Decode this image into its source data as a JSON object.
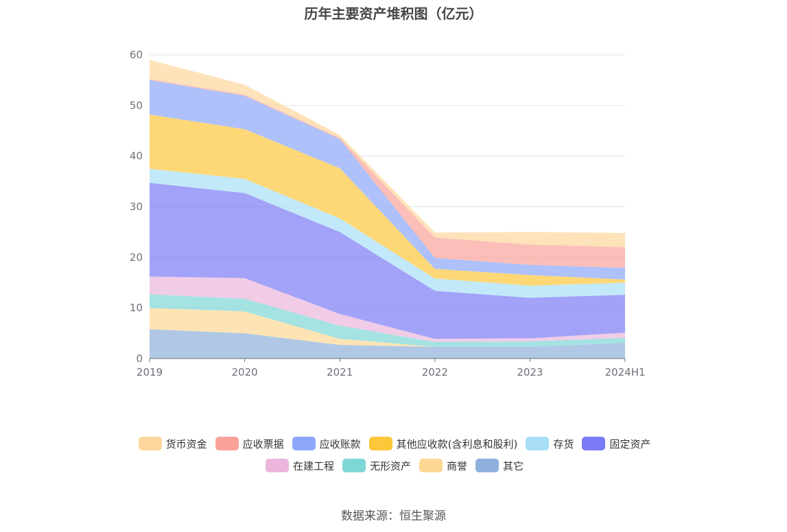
{
  "title": "历年主要资产堆积图（亿元）",
  "source": "数据来源：恒生聚源",
  "chart_data": {
    "type": "area",
    "stacked": true,
    "categories": [
      "2019",
      "2020",
      "2021",
      "2022",
      "2023",
      "2024H1"
    ],
    "ylim": [
      0,
      60
    ],
    "yticks": [
      0,
      10,
      20,
      30,
      40,
      50,
      60
    ],
    "grid": true,
    "legend_position": "bottom",
    "series": [
      {
        "name": "其它",
        "color": "#8fb0dc",
        "values": [
          5.8,
          5.0,
          2.7,
          2.3,
          2.3,
          3.1
        ]
      },
      {
        "name": "商誉",
        "color": "#fdd894",
        "values": [
          4.2,
          4.3,
          1.2,
          0.0,
          0.0,
          0.0
        ]
      },
      {
        "name": "无形资产",
        "color": "#7fd6d6",
        "values": [
          2.7,
          2.5,
          2.6,
          1.0,
          1.1,
          1.0
        ]
      },
      {
        "name": "在建工程",
        "color": "#ebb7dd",
        "values": [
          3.5,
          4.1,
          2.3,
          0.6,
          0.6,
          1.0
        ]
      },
      {
        "name": "固定资产",
        "color": "#7b7bf5",
        "values": [
          18.5,
          16.8,
          16.2,
          9.5,
          8.0,
          7.5
        ]
      },
      {
        "name": "存货",
        "color": "#a8dff7",
        "values": [
          2.8,
          2.8,
          2.7,
          2.4,
          2.4,
          2.4
        ]
      },
      {
        "name": "其他应收款(含利息和股利)",
        "color": "#fdc73c",
        "values": [
          10.7,
          9.8,
          9.9,
          1.9,
          2.1,
          0.6
        ]
      },
      {
        "name": "应收账款",
        "color": "#8ca7fa",
        "values": [
          6.8,
          6.6,
          5.8,
          2.2,
          2.0,
          2.3
        ]
      },
      {
        "name": "应收票据",
        "color": "#f9a29a",
        "values": [
          0.2,
          0.2,
          0.2,
          4.0,
          4.0,
          4.1
        ]
      },
      {
        "name": "货币资金",
        "color": "#fdd69b",
        "values": [
          3.8,
          2.0,
          0.6,
          1.0,
          2.5,
          2.8
        ]
      }
    ]
  },
  "legend": [
    {
      "name": "货币资金",
      "color": "#fdd69b"
    },
    {
      "name": "应收票据",
      "color": "#f9a29a"
    },
    {
      "name": "应收账款",
      "color": "#8ca7fa"
    },
    {
      "name": "其他应收款(含利息和股利)",
      "color": "#fdc73c"
    },
    {
      "name": "存货",
      "color": "#a8dff7"
    },
    {
      "name": "固定资产",
      "color": "#7b7bf5"
    },
    {
      "name": "在建工程",
      "color": "#ebb7dd"
    },
    {
      "name": "无形资产",
      "color": "#7fd6d6"
    },
    {
      "name": "商誉",
      "color": "#fdd894"
    },
    {
      "name": "其它",
      "color": "#8fb0dc"
    }
  ]
}
